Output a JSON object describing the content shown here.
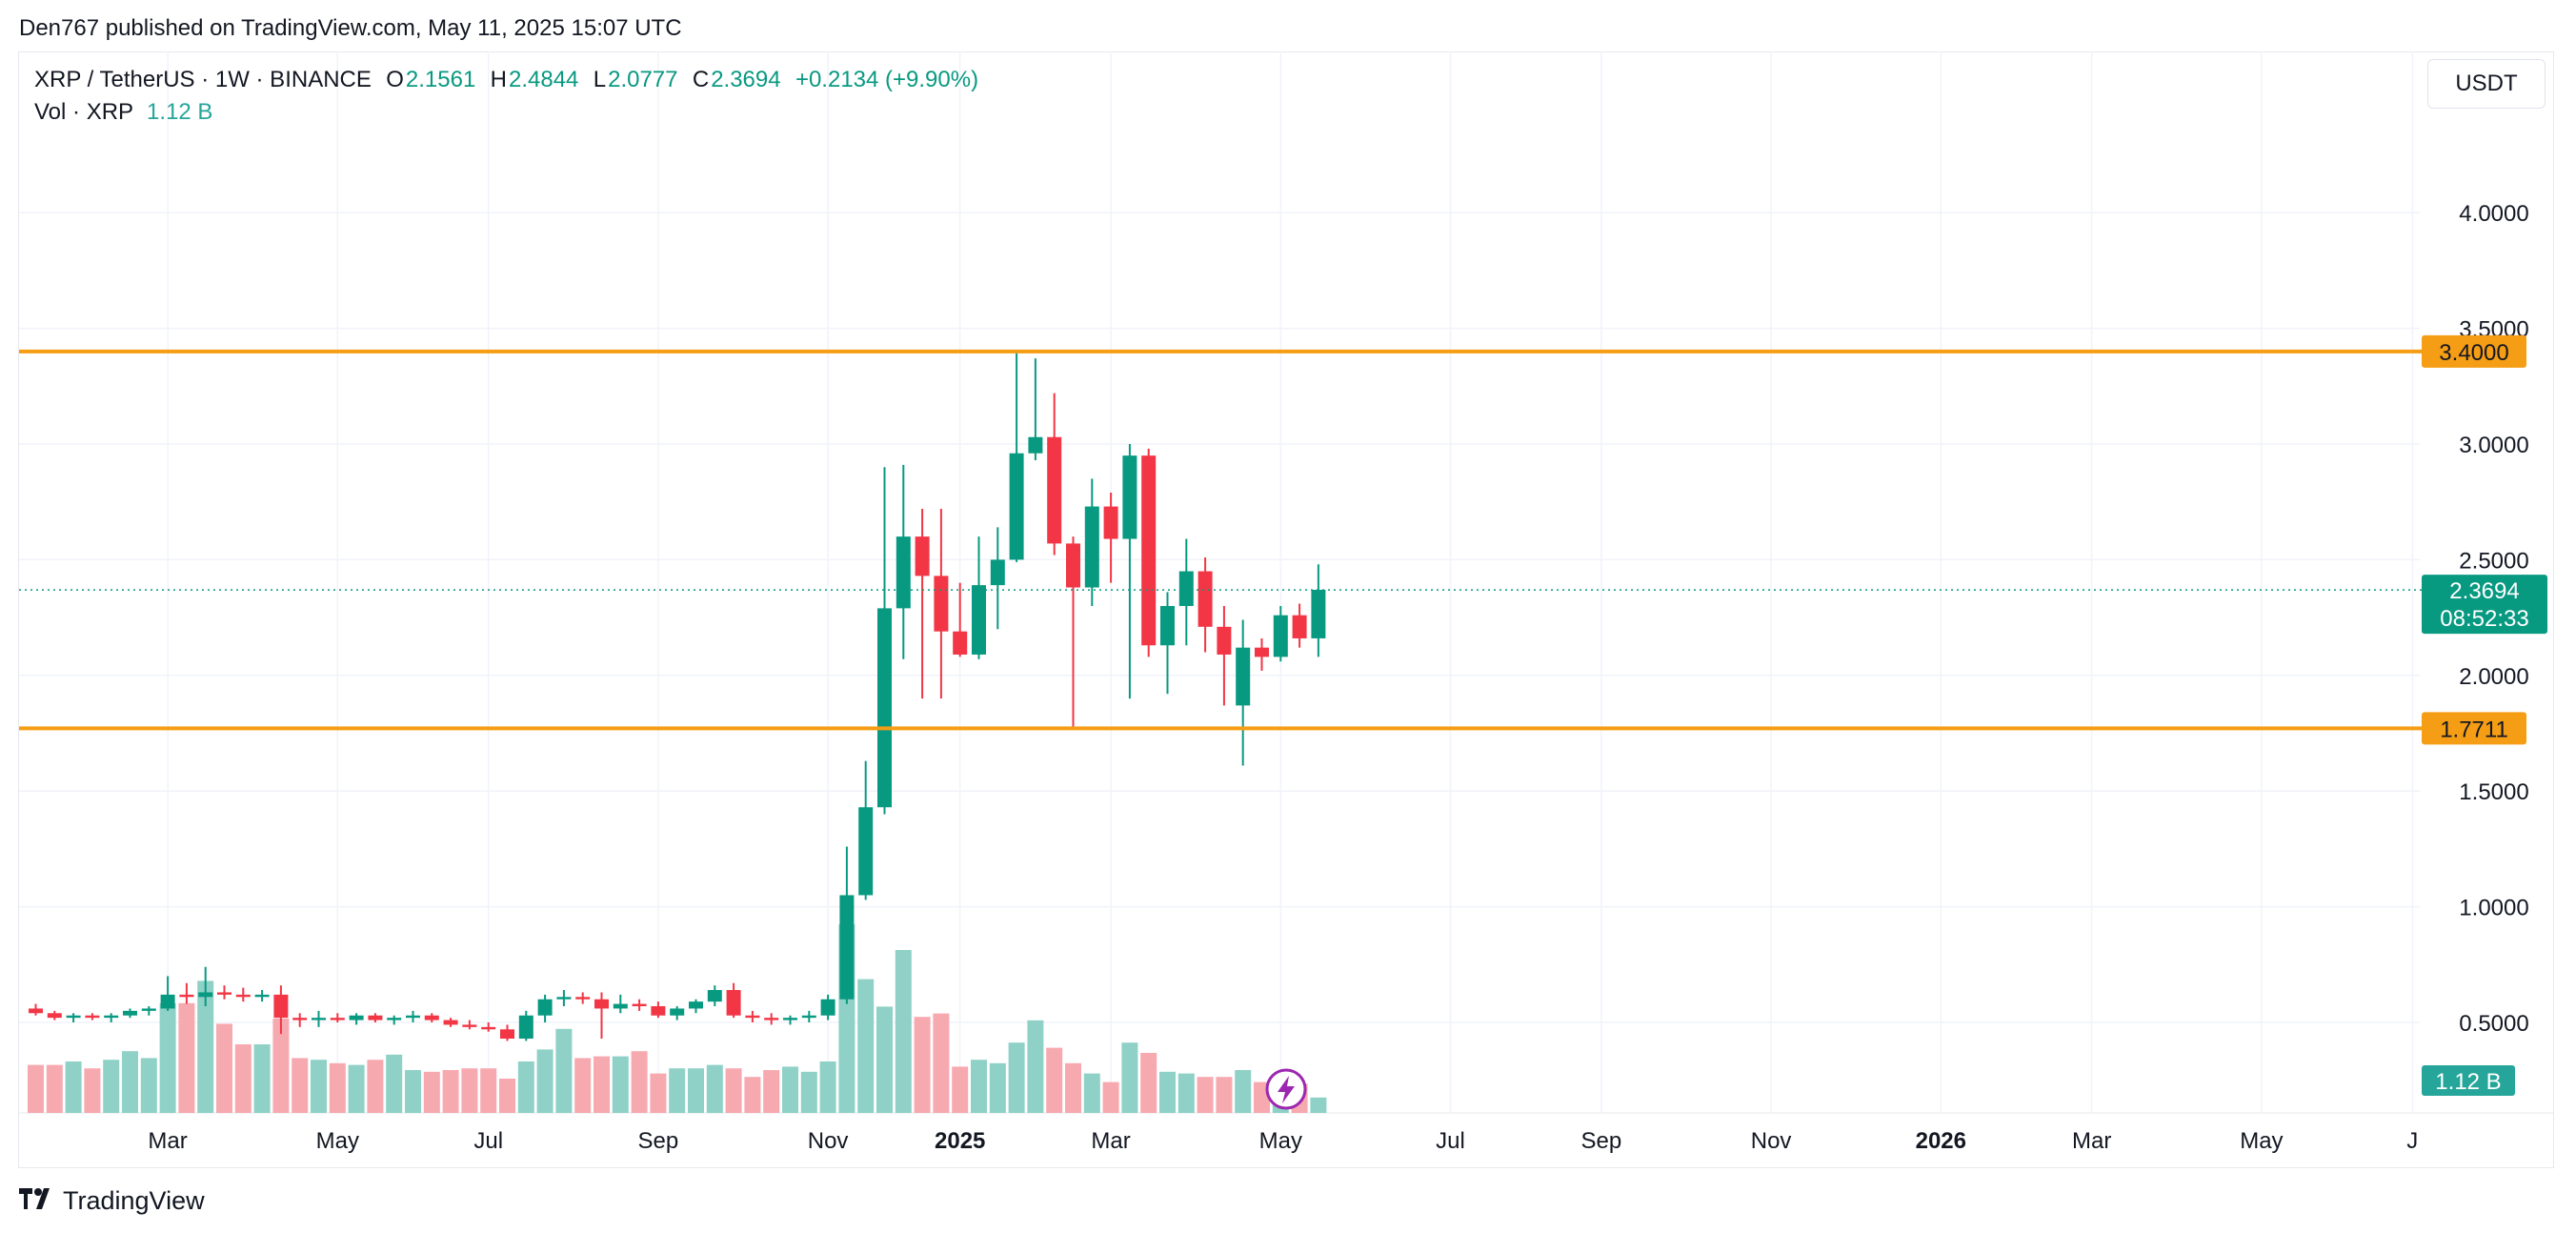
{
  "publisher_line": "Den767 published on TradingView.com, May 11, 2025 15:07 UTC",
  "legend": {
    "symbol": "XRP / TetherUS · 1W · BINANCE",
    "o_label": "O",
    "o": "2.1561",
    "h_label": "H",
    "h": "2.4844",
    "l_label": "L",
    "l": "2.0777",
    "c_label": "C",
    "c": "2.3694",
    "change": "+0.2134 (+9.90%)"
  },
  "volume_legend": {
    "label": "Vol · XRP",
    "value": "1.12 B"
  },
  "currency_button": "USDT",
  "footer": {
    "brand": "TradingView"
  },
  "colors": {
    "up": "#089981",
    "down": "#f23645",
    "up_vol": "#8fd1c6",
    "down_vol": "#f7a9b0",
    "level": "#f59d14",
    "grid": "#f0f3fa"
  },
  "chart_data": {
    "type": "candlestick",
    "title": "XRP / TetherUS · 1W · BINANCE",
    "ylim": [
      0.2,
      4.6
    ],
    "y_ticks": [
      "0.5000",
      "1.0000",
      "1.5000",
      "2.0000",
      "2.5000",
      "3.0000",
      "3.5000",
      "4.0000"
    ],
    "x_ticks": [
      "Mar",
      "May",
      "Jul",
      "Sep",
      "Nov",
      "2025",
      "Mar",
      "May",
      "Jul",
      "Sep",
      "Nov",
      "2026",
      "Mar",
      "May",
      "J"
    ],
    "x_tick_weeks": [
      7,
      16,
      24,
      33,
      42,
      49,
      57,
      66,
      75,
      83,
      92,
      101,
      109,
      118,
      126
    ],
    "horizontal_levels": [
      {
        "value": 3.4,
        "label": "3.4000"
      },
      {
        "value": 1.7711,
        "label": "1.7711"
      }
    ],
    "last_price": {
      "value": 2.3694,
      "label": "2.3694",
      "countdown": "08:52:33"
    },
    "volume_label": "1.12 B",
    "candles": [
      [
        0.56,
        0.58,
        0.53,
        0.54
      ],
      [
        0.54,
        0.55,
        0.51,
        0.52
      ],
      [
        0.52,
        0.54,
        0.5,
        0.53
      ],
      [
        0.53,
        0.54,
        0.51,
        0.52
      ],
      [
        0.52,
        0.54,
        0.5,
        0.53
      ],
      [
        0.53,
        0.56,
        0.52,
        0.55
      ],
      [
        0.55,
        0.57,
        0.53,
        0.56
      ],
      [
        0.56,
        0.7,
        0.55,
        0.62
      ],
      [
        0.62,
        0.67,
        0.58,
        0.61
      ],
      [
        0.61,
        0.74,
        0.57,
        0.63
      ],
      [
        0.63,
        0.66,
        0.6,
        0.62
      ],
      [
        0.62,
        0.65,
        0.59,
        0.61
      ],
      [
        0.61,
        0.64,
        0.59,
        0.62
      ],
      [
        0.62,
        0.66,
        0.45,
        0.52
      ],
      [
        0.52,
        0.54,
        0.48,
        0.51
      ],
      [
        0.51,
        0.55,
        0.48,
        0.52
      ],
      [
        0.52,
        0.54,
        0.5,
        0.51
      ],
      [
        0.51,
        0.54,
        0.49,
        0.53
      ],
      [
        0.53,
        0.54,
        0.5,
        0.51
      ],
      [
        0.51,
        0.53,
        0.49,
        0.52
      ],
      [
        0.52,
        0.55,
        0.5,
        0.53
      ],
      [
        0.53,
        0.54,
        0.5,
        0.51
      ],
      [
        0.51,
        0.52,
        0.48,
        0.49
      ],
      [
        0.49,
        0.51,
        0.47,
        0.48
      ],
      [
        0.48,
        0.5,
        0.46,
        0.47
      ],
      [
        0.47,
        0.49,
        0.42,
        0.43
      ],
      [
        0.43,
        0.55,
        0.42,
        0.53
      ],
      [
        0.53,
        0.62,
        0.5,
        0.6
      ],
      [
        0.6,
        0.64,
        0.57,
        0.61
      ],
      [
        0.61,
        0.63,
        0.58,
        0.6
      ],
      [
        0.6,
        0.63,
        0.43,
        0.56
      ],
      [
        0.56,
        0.62,
        0.54,
        0.58
      ],
      [
        0.58,
        0.6,
        0.55,
        0.57
      ],
      [
        0.57,
        0.59,
        0.52,
        0.53
      ],
      [
        0.53,
        0.57,
        0.51,
        0.56
      ],
      [
        0.56,
        0.6,
        0.54,
        0.59
      ],
      [
        0.59,
        0.66,
        0.57,
        0.64
      ],
      [
        0.64,
        0.67,
        0.52,
        0.53
      ],
      [
        0.53,
        0.55,
        0.5,
        0.52
      ],
      [
        0.52,
        0.54,
        0.49,
        0.51
      ],
      [
        0.51,
        0.53,
        0.49,
        0.52
      ],
      [
        0.52,
        0.55,
        0.5,
        0.53
      ],
      [
        0.53,
        0.62,
        0.51,
        0.6
      ],
      [
        0.6,
        1.26,
        0.58,
        1.05
      ],
      [
        1.05,
        1.63,
        1.03,
        1.43
      ],
      [
        1.43,
        2.9,
        1.4,
        2.29
      ],
      [
        2.29,
        2.91,
        2.07,
        2.6
      ],
      [
        2.6,
        2.72,
        1.9,
        2.43
      ],
      [
        2.43,
        2.72,
        1.9,
        2.19
      ],
      [
        2.19,
        2.4,
        2.08,
        2.09
      ],
      [
        2.09,
        2.6,
        2.07,
        2.39
      ],
      [
        2.39,
        2.64,
        2.2,
        2.5
      ],
      [
        2.5,
        3.4,
        2.49,
        2.96
      ],
      [
        2.96,
        3.37,
        2.93,
        3.03
      ],
      [
        3.03,
        3.22,
        2.52,
        2.57
      ],
      [
        2.57,
        2.6,
        1.77,
        2.38
      ],
      [
        2.38,
        2.85,
        2.3,
        2.73
      ],
      [
        2.73,
        2.79,
        2.4,
        2.59
      ],
      [
        2.59,
        3.0,
        1.9,
        2.95
      ],
      [
        2.95,
        2.98,
        2.08,
        2.13
      ],
      [
        2.13,
        2.36,
        1.92,
        2.3
      ],
      [
        2.3,
        2.59,
        2.13,
        2.45
      ],
      [
        2.45,
        2.51,
        2.1,
        2.21
      ],
      [
        2.21,
        2.3,
        1.87,
        2.09
      ],
      [
        1.87,
        2.24,
        1.61,
        2.12
      ],
      [
        2.12,
        2.16,
        2.02,
        2.08
      ],
      [
        2.08,
        2.3,
        2.06,
        2.26
      ],
      [
        2.26,
        2.31,
        2.12,
        2.16
      ],
      [
        2.16,
        2.48,
        2.08,
        2.37
      ]
    ],
    "volume_relative": [
      0.28,
      0.28,
      0.3,
      0.26,
      0.31,
      0.36,
      0.32,
      0.64,
      0.64,
      0.77,
      0.52,
      0.4,
      0.4,
      0.55,
      0.32,
      0.31,
      0.29,
      0.28,
      0.31,
      0.34,
      0.25,
      0.24,
      0.25,
      0.26,
      0.26,
      0.2,
      0.3,
      0.37,
      0.49,
      0.32,
      0.33,
      0.33,
      0.36,
      0.23,
      0.26,
      0.26,
      0.28,
      0.26,
      0.21,
      0.25,
      0.27,
      0.24,
      0.3,
      1.1,
      0.78,
      0.62,
      0.95,
      0.56,
      0.58,
      0.27,
      0.31,
      0.29,
      0.41,
      0.54,
      0.38,
      0.29,
      0.23,
      0.18,
      0.41,
      0.35,
      0.24,
      0.23,
      0.21,
      0.21,
      0.25,
      0.18,
      0.13,
      0.17,
      0.09
    ]
  }
}
